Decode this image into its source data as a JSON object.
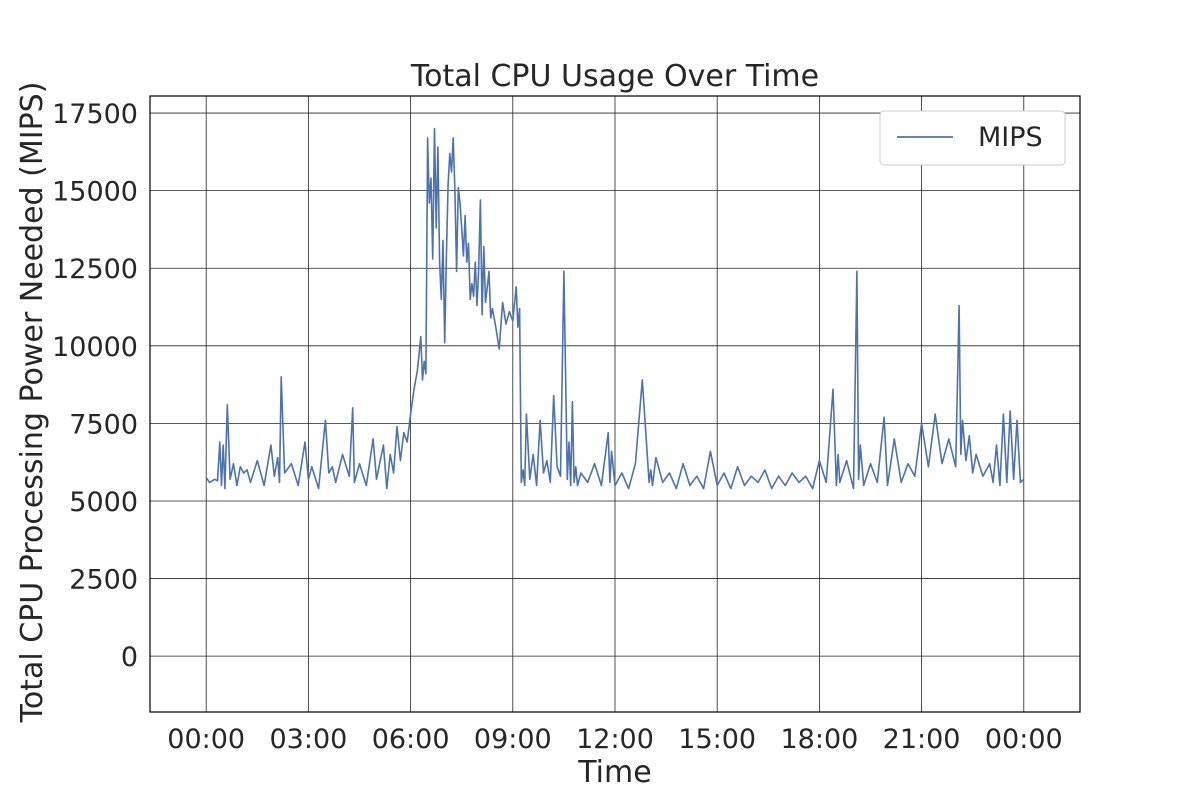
{
  "chart_data": {
    "type": "line",
    "title": "Total CPU Usage Over Time",
    "xlabel": "Time",
    "ylabel": "Total CPU Processing Power Needed (MIPS)",
    "x_ticks": [
      "00:00",
      "03:00",
      "06:00",
      "09:00",
      "12:00",
      "15:00",
      "18:00",
      "21:00",
      "00:00"
    ],
    "x_tick_hours": [
      0,
      3,
      6,
      9,
      12,
      15,
      18,
      21,
      24
    ],
    "y_ticks": [
      0,
      2500,
      5000,
      7500,
      10000,
      12500,
      15000,
      17500
    ],
    "y_tick_labels": [
      "0",
      "2500",
      "5000",
      "7500",
      "10000",
      "12500",
      "15000",
      "17500"
    ],
    "xlim_hours": [
      -1.65,
      25.65
    ],
    "ylim": [
      -1800,
      18050
    ],
    "grid": true,
    "legend_position": "top-right",
    "line_color": "#4c72b0",
    "series": [
      {
        "name": "MIPS",
        "x_hours": [
          0.0,
          0.1,
          0.25,
          0.33,
          0.4,
          0.45,
          0.5,
          0.55,
          0.62,
          0.7,
          0.8,
          0.9,
          1.0,
          1.1,
          1.2,
          1.3,
          1.5,
          1.7,
          1.9,
          2.0,
          2.1,
          2.15,
          2.2,
          2.3,
          2.5,
          2.7,
          2.9,
          3.0,
          3.1,
          3.3,
          3.5,
          3.6,
          3.7,
          3.8,
          4.0,
          4.2,
          4.3,
          4.35,
          4.5,
          4.7,
          4.9,
          5.0,
          5.2,
          5.3,
          5.4,
          5.5,
          5.6,
          5.7,
          5.8,
          5.9,
          6.0,
          6.1,
          6.2,
          6.3,
          6.35,
          6.4,
          6.45,
          6.5,
          6.55,
          6.6,
          6.65,
          6.7,
          6.75,
          6.8,
          6.85,
          6.9,
          6.95,
          7.0,
          7.05,
          7.1,
          7.15,
          7.2,
          7.25,
          7.3,
          7.35,
          7.4,
          7.45,
          7.5,
          7.55,
          7.6,
          7.65,
          7.7,
          7.75,
          7.8,
          7.85,
          7.9,
          7.95,
          8.0,
          8.05,
          8.1,
          8.15,
          8.2,
          8.25,
          8.3,
          8.35,
          8.4,
          8.5,
          8.6,
          8.7,
          8.8,
          8.9,
          9.0,
          9.1,
          9.15,
          9.2,
          9.25,
          9.3,
          9.35,
          9.4,
          9.5,
          9.6,
          9.7,
          9.8,
          9.9,
          10.0,
          10.1,
          10.2,
          10.3,
          10.4,
          10.5,
          10.6,
          10.65,
          10.7,
          10.75,
          10.8,
          10.85,
          10.9,
          11.0,
          11.2,
          11.4,
          11.6,
          11.8,
          11.85,
          11.9,
          12.0,
          12.2,
          12.4,
          12.6,
          12.8,
          13.0,
          13.05,
          13.1,
          13.2,
          13.4,
          13.6,
          13.8,
          14.0,
          14.2,
          14.4,
          14.6,
          14.8,
          15.0,
          15.2,
          15.4,
          15.6,
          15.8,
          16.0,
          16.2,
          16.4,
          16.6,
          16.8,
          17.0,
          17.2,
          17.4,
          17.6,
          17.8,
          18.0,
          18.2,
          18.4,
          18.5,
          18.55,
          18.6,
          18.8,
          19.0,
          19.1,
          19.15,
          19.2,
          19.3,
          19.5,
          19.7,
          19.9,
          20.0,
          20.2,
          20.4,
          20.6,
          20.8,
          21.0,
          21.2,
          21.4,
          21.6,
          21.8,
          22.0,
          22.1,
          22.15,
          22.2,
          22.3,
          22.4,
          22.5,
          22.6,
          22.8,
          23.0,
          23.1,
          23.2,
          23.3,
          23.4,
          23.5,
          23.6,
          23.7,
          23.8,
          23.9,
          24.0
        ],
        "values": [
          5750,
          5600,
          5700,
          5650,
          6900,
          5500,
          6800,
          5400,
          8100,
          5700,
          6200,
          5500,
          6100,
          5900,
          6000,
          5600,
          6300,
          5500,
          6800,
          5800,
          6400,
          5600,
          9000,
          5900,
          6200,
          5500,
          6900,
          5700,
          6100,
          5400,
          7600,
          5900,
          6100,
          5600,
          6500,
          5800,
          8000,
          5600,
          6200,
          5500,
          7000,
          5700,
          6800,
          5400,
          6500,
          5900,
          7400,
          6300,
          7200,
          6900,
          7800,
          8600,
          9200,
          10300,
          8900,
          9500,
          9100,
          16700,
          14600,
          15400,
          12800,
          17000,
          13800,
          16400,
          12700,
          11500,
          13400,
          10100,
          12900,
          15200,
          16200,
          15600,
          16700,
          15000,
          12400,
          15100,
          14600,
          13800,
          12900,
          14200,
          12700,
          13300,
          11500,
          12000,
          11600,
          12700,
          11300,
          12500,
          14700,
          11000,
          13200,
          11400,
          11900,
          12400,
          10900,
          11200,
          10600,
          9900,
          11400,
          10700,
          11100,
          10800,
          11900,
          10600,
          11200,
          5600,
          6000,
          5500,
          7800,
          5700,
          6500,
          5500,
          7600,
          5900,
          6300,
          5600,
          8400,
          6100,
          5800,
          12400,
          5700,
          6900,
          5500,
          8200,
          5600,
          6100,
          5500,
          5900,
          5600,
          6200,
          5500,
          7200,
          5600,
          6600,
          5500,
          5900,
          5400,
          6200,
          8900,
          5600,
          6000,
          5500,
          6400,
          5600,
          5900,
          5400,
          6200,
          5500,
          5800,
          5400,
          6600,
          5500,
          5900,
          5400,
          6100,
          5500,
          5800,
          5600,
          6000,
          5400,
          5800,
          5500,
          5900,
          5600,
          5800,
          5400,
          6300,
          5600,
          8600,
          5500,
          6500,
          5600,
          6300,
          5400,
          12400,
          5700,
          6800,
          5500,
          6200,
          5600,
          7700,
          5500,
          7000,
          5600,
          6200,
          5800,
          7500,
          6100,
          7800,
          6200,
          7000,
          6100,
          11300,
          6500,
          7600,
          6300,
          7100,
          5900,
          6500,
          5800,
          6200,
          5600,
          6800,
          5500,
          7800,
          5600,
          7900,
          5700,
          7600,
          5600,
          5700
        ]
      }
    ]
  }
}
